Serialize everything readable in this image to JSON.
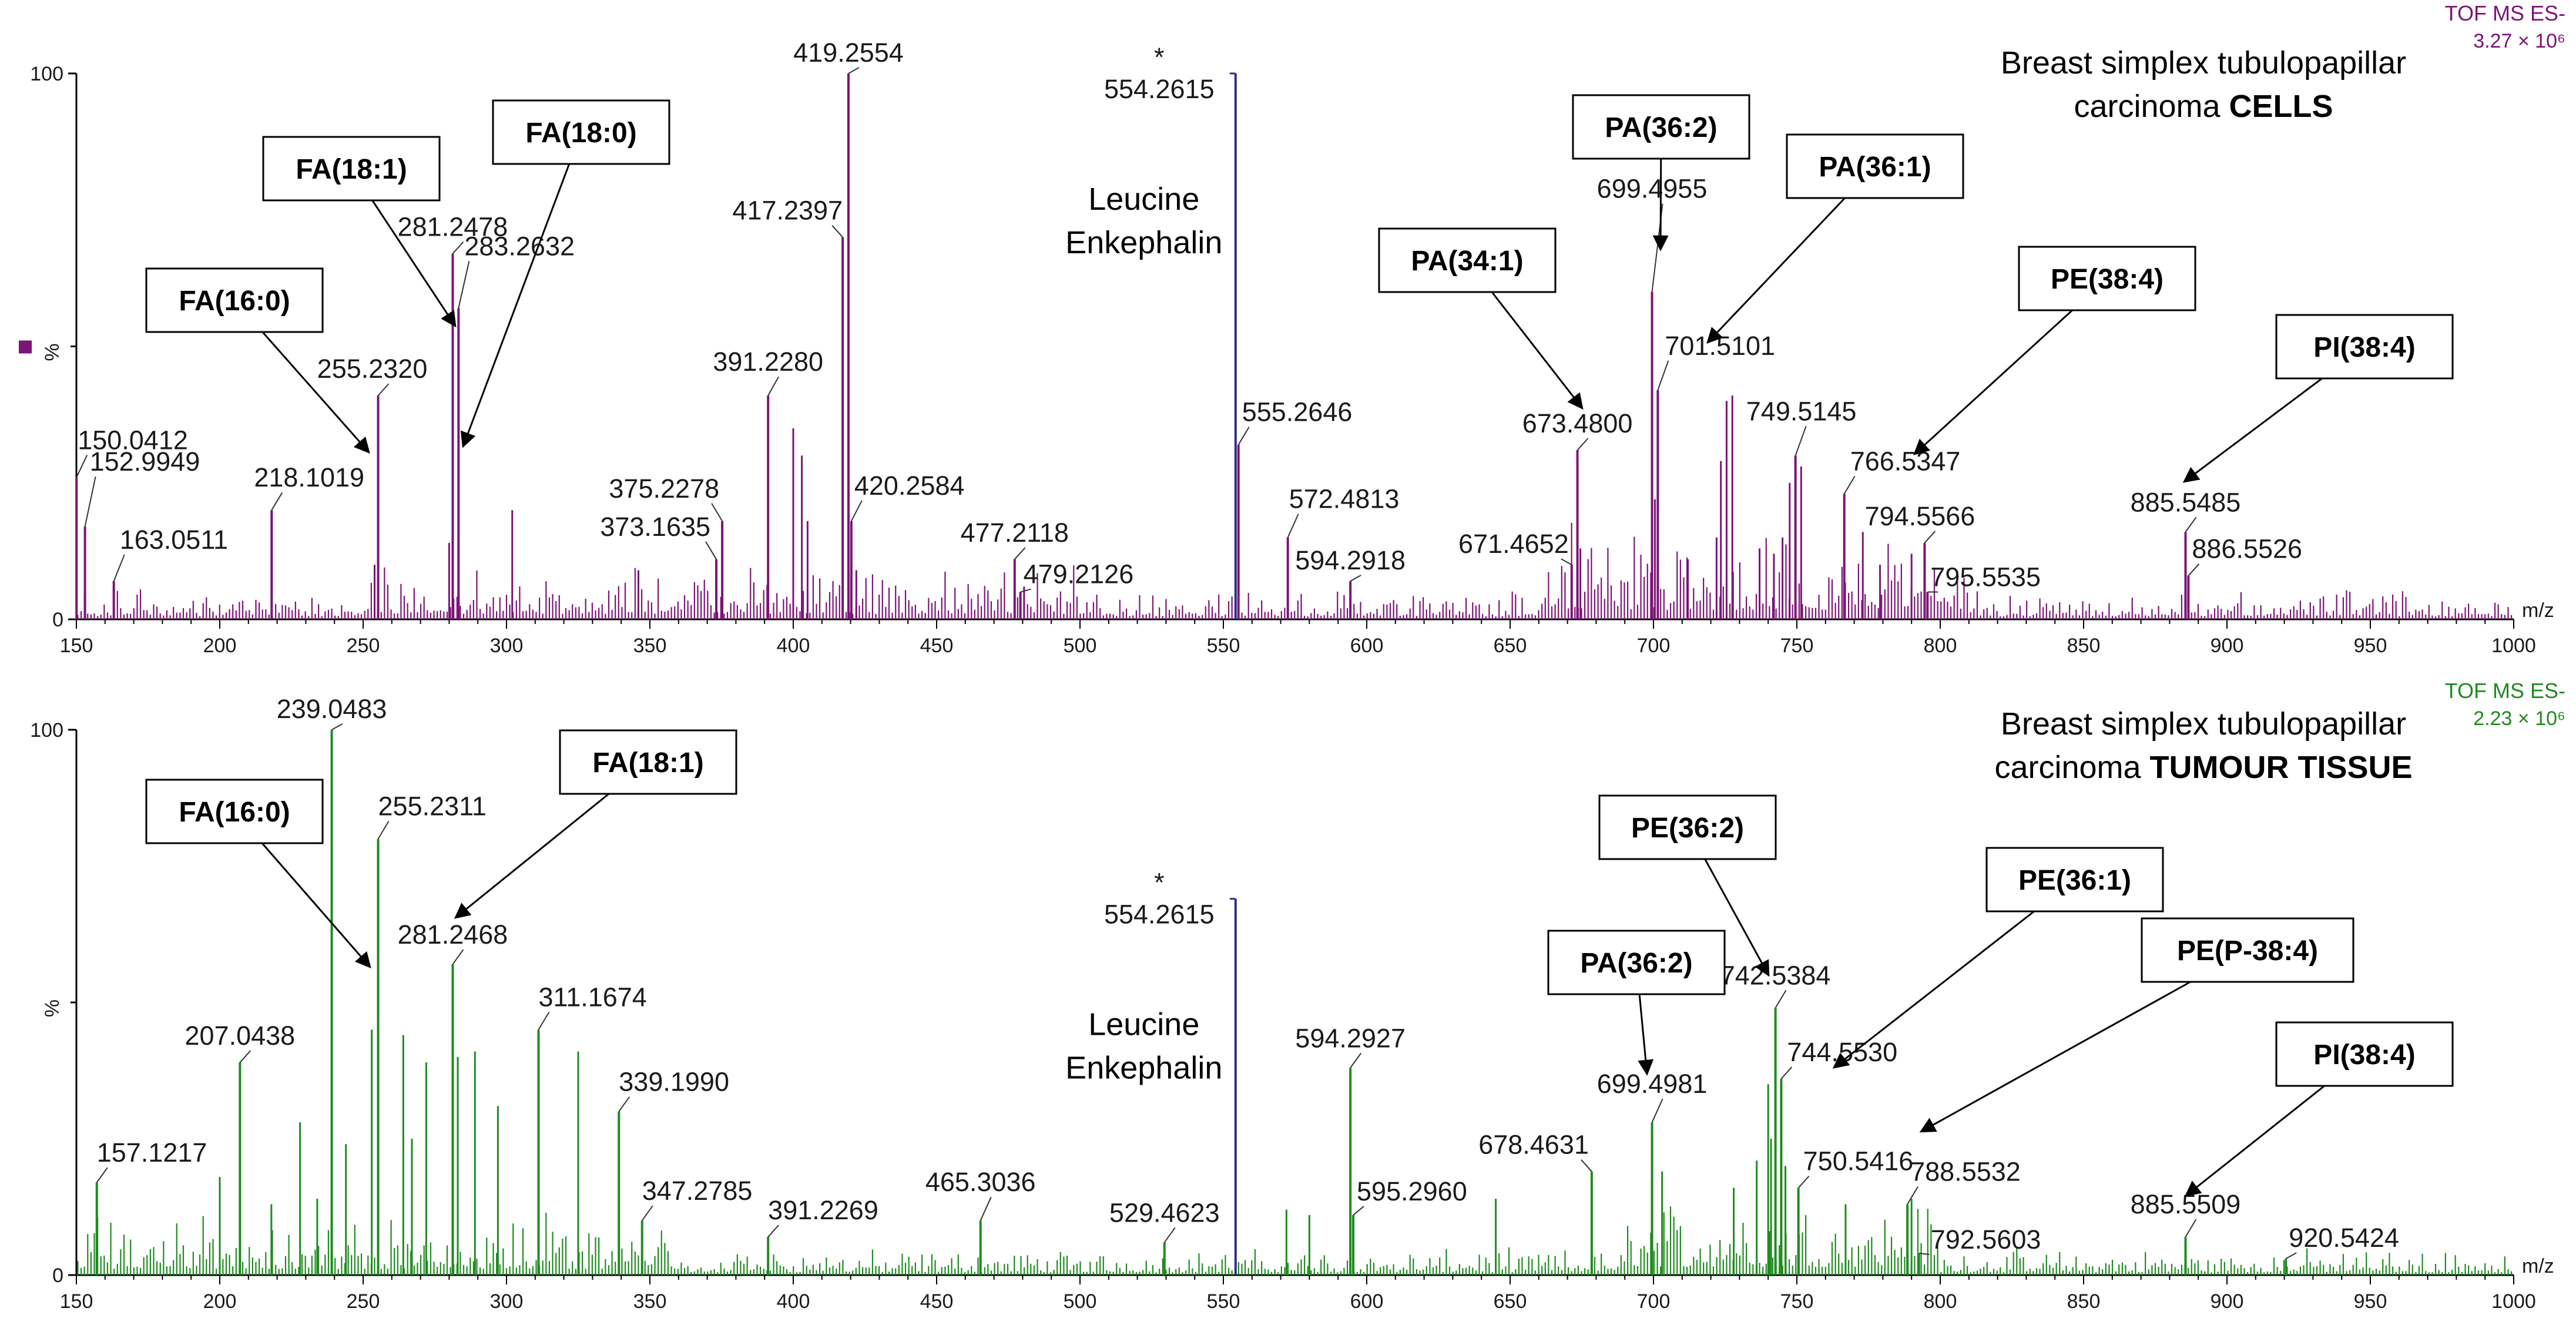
{
  "chart_data": [
    {
      "type": "bar",
      "name": "cells",
      "title_lines": [
        "Breast simplex tubulopapillar",
        "carcinoma "
      ],
      "title_bold": "CELLS",
      "instrument": "TOF MS ES-",
      "scale_label": "3.27 × 10⁶",
      "color": "#7B1476",
      "reference_color": "#2E2E8C",
      "xlabel": "m/z",
      "ylabel": "%",
      "xlim": [
        150,
        1000
      ],
      "ylim": [
        0,
        100
      ],
      "x_ticks": [
        "150",
        "200",
        "250",
        "300",
        "350",
        "400",
        "450",
        "500",
        "550",
        "600",
        "650",
        "700",
        "750",
        "800",
        "850",
        "900",
        "950",
        "1000"
      ],
      "y_ticks": [
        "0",
        "100"
      ],
      "reference": {
        "x": 554.2615,
        "y": 100,
        "label": "554.2615",
        "marker": "*",
        "name_lines": [
          "Leucine",
          "Enkephalin"
        ]
      },
      "peaks": [
        {
          "x": 150.0412,
          "y": 26,
          "label": "150.0412"
        },
        {
          "x": 152.9949,
          "y": 17,
          "label": "152.9949"
        },
        {
          "x": 163.0511,
          "y": 7,
          "label": "163.0511"
        },
        {
          "x": 218.1019,
          "y": 20,
          "label": "218.1019"
        },
        {
          "x": 255.232,
          "y": 41,
          "label": "255.2320"
        },
        {
          "x": 281.2478,
          "y": 67,
          "label": "281.2478"
        },
        {
          "x": 283.2632,
          "y": 57,
          "label": "283.2632"
        },
        {
          "x": 373.1635,
          "y": 11,
          "label": "373.1635"
        },
        {
          "x": 375.2278,
          "y": 18,
          "label": "375.2278"
        },
        {
          "x": 391.228,
          "y": 41,
          "label": "391.2280"
        },
        {
          "x": 417.2397,
          "y": 70,
          "label": "417.2397"
        },
        {
          "x": 419.2554,
          "y": 100,
          "label": "419.2554"
        },
        {
          "x": 420.2584,
          "y": 18,
          "label": "420.2584"
        },
        {
          "x": 477.2118,
          "y": 11,
          "label": "477.2118"
        },
        {
          "x": 479.2126,
          "y": 5,
          "label": "479.2126"
        },
        {
          "x": 555.2646,
          "y": 32,
          "label": "555.2646"
        },
        {
          "x": 572.4813,
          "y": 15,
          "label": "572.4813"
        },
        {
          "x": 594.2918,
          "y": 7,
          "label": "594.2918"
        },
        {
          "x": 671.4652,
          "y": 10,
          "label": "671.4652"
        },
        {
          "x": 673.48,
          "y": 31,
          "label": "673.4800"
        },
        {
          "x": 699.4955,
          "y": 60,
          "label": "699.4955"
        },
        {
          "x": 701.5101,
          "y": 42,
          "label": "701.5101"
        },
        {
          "x": 749.5145,
          "y": 30,
          "label": "749.5145"
        },
        {
          "x": 766.5347,
          "y": 23,
          "label": "766.5347"
        },
        {
          "x": 794.5566,
          "y": 14,
          "label": "794.5566"
        },
        {
          "x": 795.5535,
          "y": 5,
          "label": "795.5535"
        },
        {
          "x": 885.5485,
          "y": 16,
          "label": "885.5485"
        },
        {
          "x": 886.5526,
          "y": 8,
          "label": "886.5526"
        }
      ],
      "extra_peaks": [
        {
          "x": 302,
          "y": 20
        },
        {
          "x": 400,
          "y": 35
        },
        {
          "x": 403,
          "y": 30
        },
        {
          "x": 405,
          "y": 18
        },
        {
          "x": 422,
          "y": 9
        },
        {
          "x": 700.5,
          "y": 22
        },
        {
          "x": 725.5,
          "y": 40
        },
        {
          "x": 727.5,
          "y": 41
        },
        {
          "x": 723.5,
          "y": 29
        },
        {
          "x": 747.5,
          "y": 25
        },
        {
          "x": 751.5,
          "y": 28
        },
        {
          "x": 745,
          "y": 15
        },
        {
          "x": 737,
          "y": 13
        },
        {
          "x": 773,
          "y": 16
        },
        {
          "x": 779,
          "y": 10
        },
        {
          "x": 790,
          "y": 12
        },
        {
          "x": 742,
          "y": 12
        },
        {
          "x": 722,
          "y": 15
        },
        {
          "x": 674.5,
          "y": 13
        },
        {
          "x": 712,
          "y": 11
        },
        {
          "x": 280,
          "y": 14
        },
        {
          "x": 254,
          "y": 10
        },
        {
          "x": 346,
          "y": 9
        },
        {
          "x": 480.5,
          "y": 6
        }
      ],
      "annotations": [
        {
          "label": "FA(18:1)",
          "peak": 281.2478
        },
        {
          "label": "FA(18:0)",
          "peak": 283.2632
        },
        {
          "label": "FA(16:0)",
          "peak": 255.232
        },
        {
          "label": "PA(36:2)",
          "peak": 699.4955
        },
        {
          "label": "PA(36:1)",
          "peak": 701.5101
        },
        {
          "label": "PA(34:1)",
          "peak": 673.48
        },
        {
          "label": "PE(38:4)",
          "peak": 766.5347
        },
        {
          "label": "PI(38:4)",
          "peak": 885.5485
        }
      ]
    },
    {
      "type": "bar",
      "name": "tissue",
      "title_lines": [
        "Breast simplex tubulopapillar",
        "carcinoma "
      ],
      "title_bold": "TUMOUR TISSUE",
      "instrument": "TOF MS ES-",
      "scale_label": "2.23 × 10⁶",
      "color": "#1F8A1F",
      "reference_color": "#2E2E8C",
      "xlabel": "m/z",
      "ylabel": "%",
      "xlim": [
        150,
        1000
      ],
      "ylim": [
        0,
        100
      ],
      "x_ticks": [
        "150",
        "200",
        "250",
        "300",
        "350",
        "400",
        "450",
        "500",
        "550",
        "600",
        "650",
        "700",
        "750",
        "800",
        "850",
        "900",
        "950",
        "1000"
      ],
      "y_ticks": [
        "0",
        "100"
      ],
      "reference": {
        "x": 554.2615,
        "y": 69,
        "label": "554.2615",
        "marker": "*",
        "name_lines": [
          "Leucine",
          "Enkephalin"
        ]
      },
      "peaks": [
        {
          "x": 157.1217,
          "y": 17,
          "label": "157.1217"
        },
        {
          "x": 207.0438,
          "y": 39,
          "label": "207.0438"
        },
        {
          "x": 239.0483,
          "y": 100,
          "label": "239.0483"
        },
        {
          "x": 255.2311,
          "y": 80,
          "label": "255.2311"
        },
        {
          "x": 281.2468,
          "y": 57,
          "label": "281.2468"
        },
        {
          "x": 311.1674,
          "y": 45,
          "label": "311.1674"
        },
        {
          "x": 339.199,
          "y": 30,
          "label": "339.1990"
        },
        {
          "x": 347.2785,
          "y": 10,
          "label": "347.2785"
        },
        {
          "x": 391.2269,
          "y": 7,
          "label": "391.2269"
        },
        {
          "x": 465.3036,
          "y": 10,
          "label": "465.3036"
        },
        {
          "x": 529.4623,
          "y": 6,
          "label": "529.4623"
        },
        {
          "x": 594.2927,
          "y": 38,
          "label": "594.2927"
        },
        {
          "x": 595.296,
          "y": 11,
          "label": "595.2960"
        },
        {
          "x": 678.4631,
          "y": 19,
          "label": "678.4631"
        },
        {
          "x": 699.4981,
          "y": 28,
          "label": "699.4981"
        },
        {
          "x": 742.5384,
          "y": 49,
          "label": "742.5384"
        },
        {
          "x": 744.553,
          "y": 36,
          "label": "744.5530"
        },
        {
          "x": 750.5416,
          "y": 16,
          "label": "750.5416"
        },
        {
          "x": 788.5532,
          "y": 13,
          "label": "788.5532"
        },
        {
          "x": 792.5603,
          "y": 4,
          "label": "792.5603"
        },
        {
          "x": 885.5509,
          "y": 7,
          "label": "885.5509"
        },
        {
          "x": 920.5424,
          "y": 3,
          "label": "920.5424"
        }
      ],
      "extra_peaks": [
        {
          "x": 228,
          "y": 28
        },
        {
          "x": 253,
          "y": 45
        },
        {
          "x": 264,
          "y": 44
        },
        {
          "x": 272,
          "y": 39
        },
        {
          "x": 283,
          "y": 40
        },
        {
          "x": 289,
          "y": 41
        },
        {
          "x": 297,
          "y": 31
        },
        {
          "x": 325,
          "y": 41
        },
        {
          "x": 267,
          "y": 25
        },
        {
          "x": 200,
          "y": 18
        },
        {
          "x": 244,
          "y": 24
        },
        {
          "x": 740,
          "y": 35
        },
        {
          "x": 741,
          "y": 25
        },
        {
          "x": 736,
          "y": 21
        },
        {
          "x": 746,
          "y": 20
        },
        {
          "x": 728,
          "y": 16
        },
        {
          "x": 703,
          "y": 19
        },
        {
          "x": 767,
          "y": 13
        },
        {
          "x": 790,
          "y": 14
        },
        {
          "x": 645,
          "y": 14
        },
        {
          "x": 572,
          "y": 12
        },
        {
          "x": 580,
          "y": 11
        },
        {
          "x": 234,
          "y": 14
        },
        {
          "x": 218,
          "y": 13
        }
      ],
      "annotations": [
        {
          "label": "FA(16:0)",
          "peak": 255.2311
        },
        {
          "label": "FA(18:1)",
          "peak": 281.2468
        },
        {
          "label": "PE(36:2)",
          "peak": 742.5384
        },
        {
          "label": "PE(36:1)",
          "peak": 744.553
        },
        {
          "label": "PA(36:2)",
          "peak": 699.4981
        },
        {
          "label": "PE(P-38:4)",
          "peak": 750.5416
        },
        {
          "label": "PI(38:4)",
          "peak": 885.5509
        }
      ]
    }
  ]
}
